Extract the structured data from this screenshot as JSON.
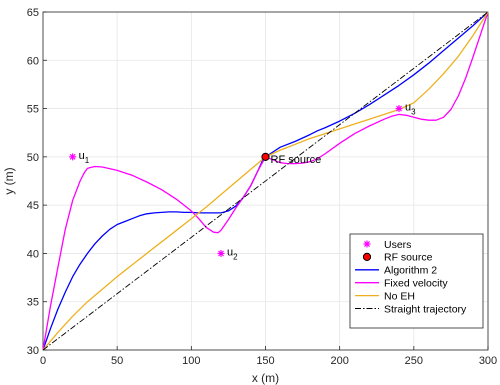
{
  "chart_data": {
    "type": "line",
    "xlabel": "x (m)",
    "ylabel": "y (m)",
    "xlim": [
      0,
      300
    ],
    "ylim": [
      30,
      65
    ],
    "xticks": [
      0,
      50,
      100,
      150,
      200,
      250,
      300
    ],
    "yticks": [
      30,
      35,
      40,
      45,
      50,
      55,
      60,
      65
    ],
    "grid": true,
    "legend_position": "bottom-right",
    "users": {
      "name": "Users",
      "color": "#ff00ff",
      "points": [
        {
          "x": 20,
          "y": 50,
          "label": "u",
          "sub": "1"
        },
        {
          "x": 120,
          "y": 40,
          "label": "u",
          "sub": "2"
        },
        {
          "x": 240,
          "y": 55,
          "label": "u",
          "sub": "3"
        }
      ]
    },
    "rf_source": {
      "name": "RF source",
      "label": "RF source",
      "x": 150,
      "y": 50,
      "color": "#ff0000"
    },
    "series": [
      {
        "name": "Algorithm 2",
        "color": "#0000ff",
        "x": [
          0,
          5,
          10,
          15,
          20,
          25,
          30,
          35,
          40,
          45,
          50,
          55,
          60,
          65,
          70,
          75,
          80,
          85,
          90,
          95,
          100,
          105,
          110,
          115,
          120,
          125,
          130,
          135,
          140,
          145,
          148,
          150,
          155,
          160,
          170,
          180,
          185,
          190,
          200,
          210,
          220,
          230,
          240,
          250,
          260,
          270,
          280,
          290,
          300
        ],
        "y": [
          30,
          32.2,
          34.2,
          36,
          37.6,
          38.9,
          40,
          41,
          41.8,
          42.5,
          43,
          43.3,
          43.6,
          43.9,
          44.1,
          44.2,
          44.25,
          44.3,
          44.3,
          44.25,
          44.25,
          44.2,
          44.2,
          44.2,
          44.2,
          44.4,
          44.9,
          45.8,
          47,
          48.6,
          49.6,
          50,
          50.5,
          51,
          51.6,
          52.3,
          52.7,
          53,
          53.7,
          54.5,
          55.4,
          56.4,
          57.4,
          58.5,
          59.7,
          61,
          62.3,
          63.6,
          65
        ]
      },
      {
        "name": "Fixed velocity",
        "color": "#ff00ff",
        "x": [
          0,
          5,
          10,
          15,
          20,
          25,
          28,
          30,
          32,
          35,
          40,
          50,
          60,
          70,
          80,
          90,
          100,
          105,
          110,
          115,
          118,
          120,
          125,
          130,
          135,
          140,
          145,
          150,
          155,
          160,
          165,
          170,
          175,
          180,
          185,
          190,
          200,
          210,
          220,
          230,
          235,
          240,
          245,
          250,
          255,
          260,
          265,
          270,
          275,
          280,
          285,
          290,
          295,
          300
        ],
        "y": [
          30,
          34.5,
          38.5,
          42.5,
          45.5,
          47.5,
          48.4,
          48.8,
          48.9,
          49,
          48.95,
          48.6,
          48.1,
          47.4,
          46.6,
          45.6,
          44.4,
          43.6,
          42.7,
          42.2,
          42.15,
          42.4,
          43.5,
          44.7,
          45.8,
          47,
          48.6,
          50,
          49.7,
          49.4,
          49.3,
          49.3,
          49.35,
          49.5,
          49.8,
          50.3,
          51.4,
          52.4,
          53.2,
          53.9,
          54.2,
          54.4,
          54.3,
          54.1,
          53.9,
          53.8,
          53.8,
          54.1,
          54.9,
          56.3,
          58.2,
          60.4,
          62.7,
          65
        ]
      },
      {
        "name": "No EH",
        "color": "#edb120",
        "x": [
          0,
          10,
          20,
          30,
          40,
          50,
          60,
          70,
          80,
          90,
          100,
          110,
          120,
          130,
          140,
          150,
          160,
          170,
          180,
          190,
          200,
          210,
          220,
          230,
          240,
          250,
          260,
          270,
          280,
          290,
          300
        ],
        "y": [
          30,
          31.8,
          33.5,
          35,
          36.3,
          37.6,
          38.8,
          40,
          41.2,
          42.4,
          43.6,
          44.8,
          46.1,
          47.4,
          48.7,
          50,
          50.7,
          51.3,
          51.9,
          52.4,
          52.9,
          53.4,
          53.9,
          54.4,
          54.9,
          55.6,
          57,
          58.6,
          60.4,
          62.6,
          65
        ]
      },
      {
        "name": "Straight trajectory",
        "color": "#000000",
        "dash": "6,2,1.5,2",
        "x": [
          0,
          300
        ],
        "y": [
          30,
          65
        ]
      }
    ]
  }
}
